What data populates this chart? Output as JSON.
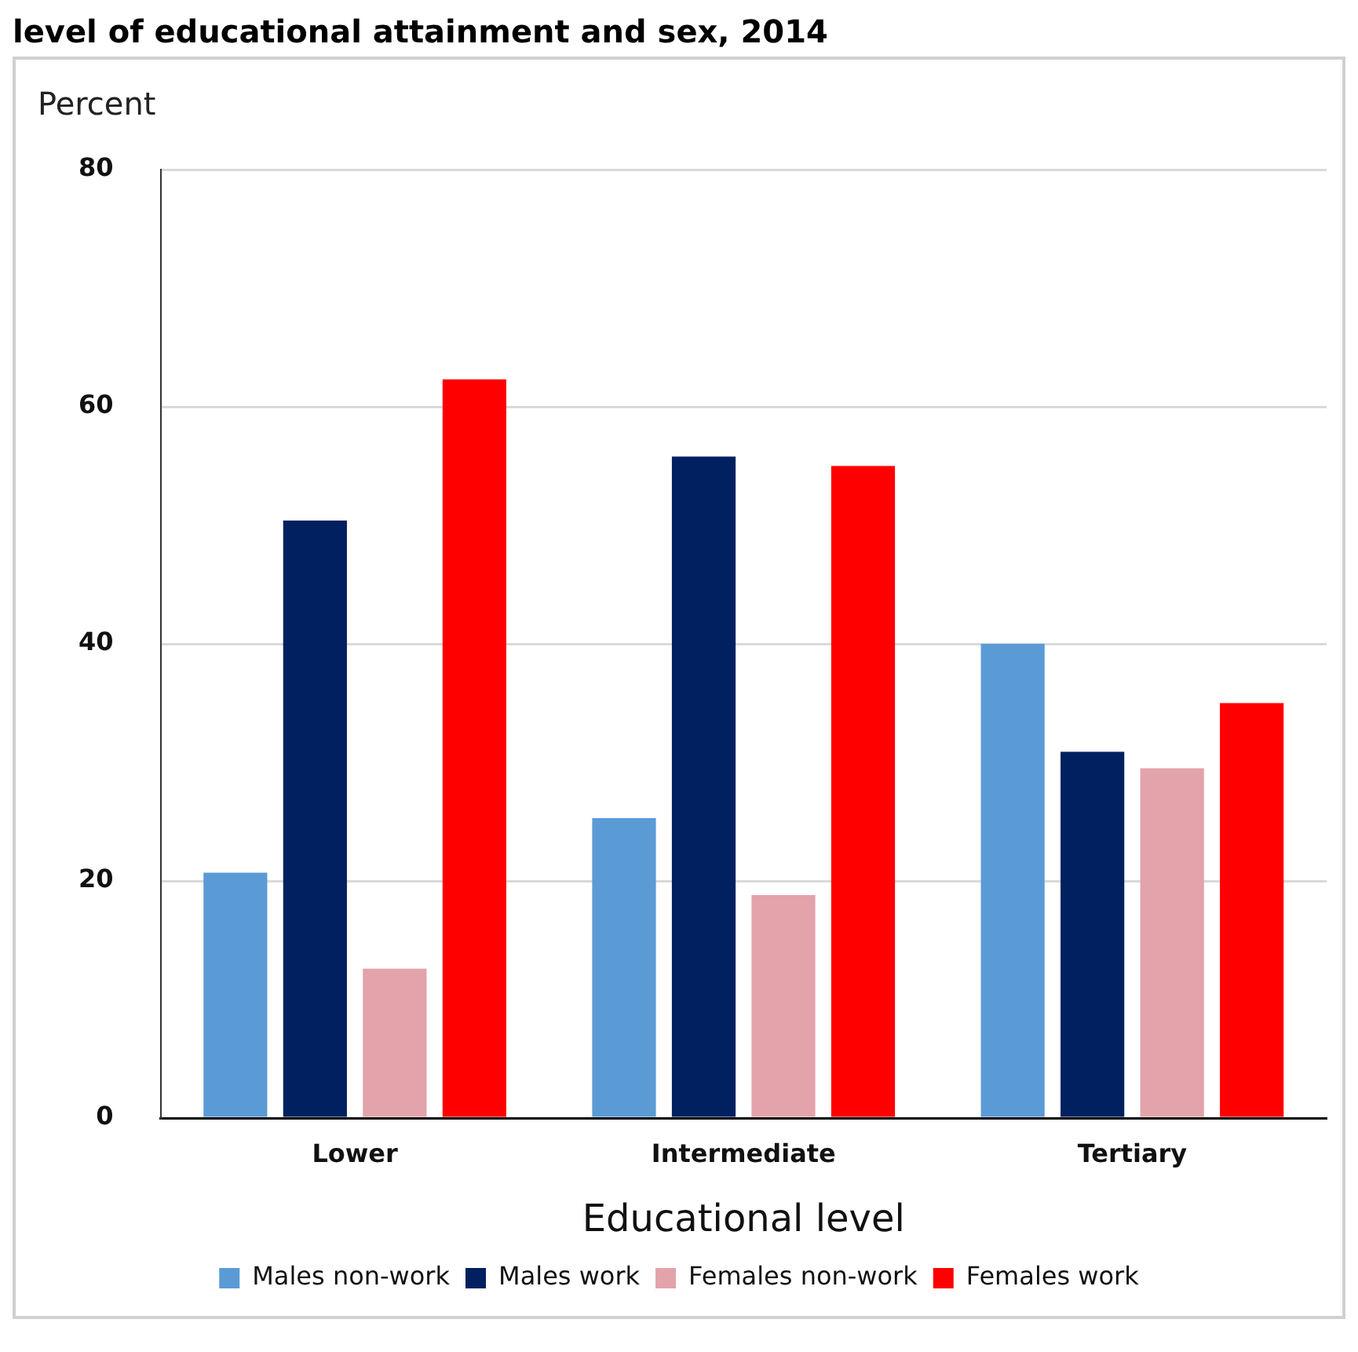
{
  "chart_data": {
    "type": "bar",
    "title": "level of educational attainment and sex, 2014",
    "ylabel": "Percent",
    "xlabel": "Educational level",
    "categories": [
      "Lower",
      "Intermediate",
      "Tertiary"
    ],
    "series": [
      {
        "name": "Males non-work",
        "color": "#5b9bd5",
        "values": [
          20.7,
          25.3,
          40.0
        ]
      },
      {
        "name": "Males work",
        "color": "#002060",
        "values": [
          50.4,
          55.8,
          30.9
        ]
      },
      {
        "name": "Females non-work",
        "color": "#e3a3aa",
        "values": [
          12.6,
          18.8,
          29.5
        ]
      },
      {
        "name": "Females work",
        "color": "#ff0000",
        "values": [
          62.3,
          55.0,
          35.0
        ]
      }
    ],
    "ylim": [
      0,
      80
    ],
    "yticks": [
      0,
      20,
      40,
      60,
      80
    ],
    "grid": "y",
    "legend": "bottom"
  }
}
